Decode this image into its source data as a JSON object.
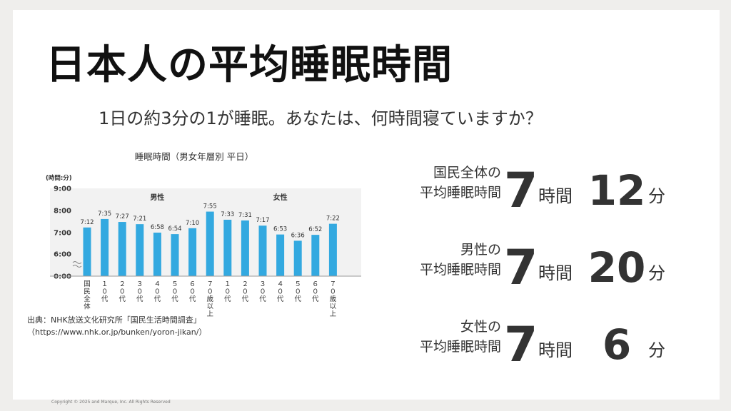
{
  "slide": {
    "title": "日本人の平均睡眠時間",
    "subtitle": "1日の約3分の1が睡眠。あなたは、何時間寝ていますか？"
  },
  "source": {
    "line1": "出典：NHK放送文化研究所「国民生活時間調査」",
    "line2": "（https://www.nhk.or.jp/bunken/yoron-jikan/）"
  },
  "stats": [
    {
      "label_line1": "国民全体の",
      "label_line2": "平均睡眠時間",
      "hours": "7",
      "hour_unit": "時間",
      "minutes": "12",
      "minute_unit": "分"
    },
    {
      "label_line1": "男性の",
      "label_line2": "平均睡眠時間",
      "hours": "7",
      "hour_unit": "時間",
      "minutes": "20",
      "minute_unit": "分"
    },
    {
      "label_line1": "女性の",
      "label_line2": "平均睡眠時間",
      "hours": "7",
      "hour_unit": "時間",
      "minutes": "6",
      "minute_unit": "分"
    }
  ],
  "footer": "Copyright © 2025 and Marque, Inc. All Rights Reserved",
  "chart_data": {
    "type": "bar",
    "title": "睡眠時間（男女年層別 平日）",
    "ylabel": "(時間:分)",
    "y_ticks": [
      "9:00",
      "8:00",
      "7:00",
      "6:00",
      "0:00"
    ],
    "ylim": [
      5,
      9
    ],
    "axis_break": true,
    "color": "#33a9e0",
    "group_labels": [
      "男性",
      "女性"
    ],
    "categories": [
      "国民全体",
      "10代",
      "20代",
      "30代",
      "40代",
      "50代",
      "60代",
      "70歳以上",
      "10代",
      "20代",
      "30代",
      "40代",
      "50代",
      "60代",
      "70歳以上"
    ],
    "category_labels": [
      "国民全体",
      "１０代",
      "２０代",
      "３０代",
      "４０代",
      "５０代",
      "６０代",
      "７０歳以上",
      "１０代",
      "２０代",
      "３０代",
      "４０代",
      "５０代",
      "６０代",
      "７０歳以上"
    ],
    "group": [
      "",
      "男性",
      "男性",
      "男性",
      "男性",
      "男性",
      "男性",
      "男性",
      "女性",
      "女性",
      "女性",
      "女性",
      "女性",
      "女性",
      "女性"
    ],
    "value_labels": [
      "7:12",
      "7:35",
      "7:27",
      "7:21",
      "6:58",
      "6:54",
      "7:10",
      "7:55",
      "7:33",
      "7:31",
      "7:17",
      "6:53",
      "6:36",
      "6:52",
      "7:22"
    ],
    "values": [
      7.2,
      7.583,
      7.45,
      7.35,
      6.967,
      6.9,
      7.167,
      7.917,
      7.55,
      7.517,
      7.283,
      6.883,
      6.6,
      6.867,
      7.367
    ],
    "grid": false,
    "legend": "none"
  }
}
